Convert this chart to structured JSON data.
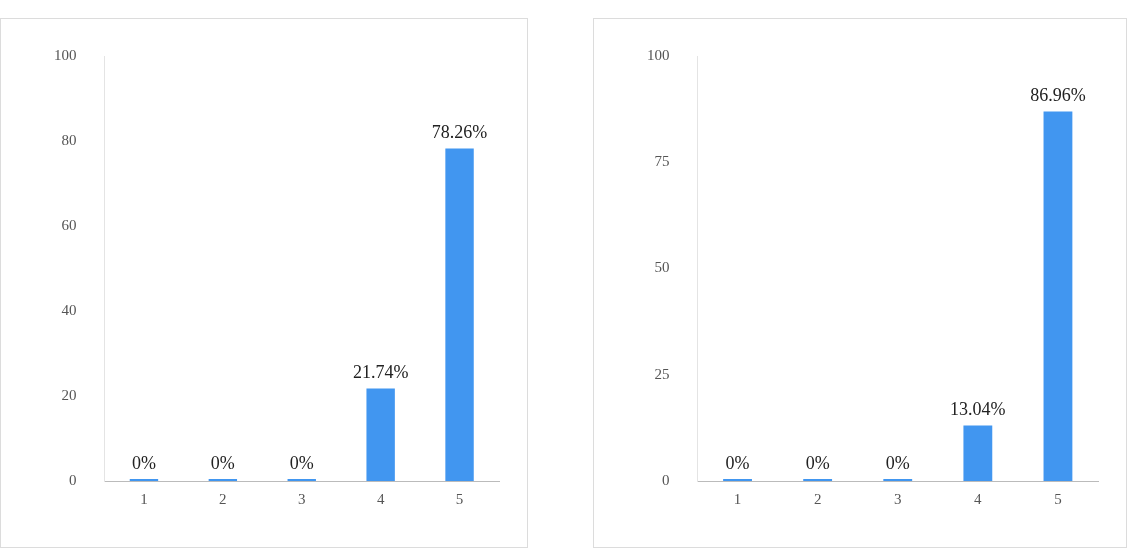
{
  "chart_data": [
    {
      "type": "bar",
      "categories": [
        "1",
        "2",
        "3",
        "4",
        "5"
      ],
      "values": [
        0,
        0,
        0,
        21.74,
        78.26
      ],
      "color": "#4196f0",
      "value_labels": [
        "0%",
        "0%",
        "0%",
        "21.74%",
        "78.26%"
      ],
      "ylim": [
        0,
        100
      ],
      "yticks": [
        0,
        20,
        40,
        60,
        80,
        100
      ],
      "grid": false,
      "legend": false
    },
    {
      "type": "bar",
      "categories": [
        "1",
        "2",
        "3",
        "4",
        "5"
      ],
      "values": [
        0,
        0,
        0,
        13.04,
        86.96
      ],
      "color": "#4196f0",
      "value_labels": [
        "0%",
        "0%",
        "0%",
        "13.04%",
        "86.96%"
      ],
      "ylim": [
        0,
        100
      ],
      "yticks": [
        0,
        25,
        50,
        75,
        100
      ],
      "grid": false,
      "legend": false
    }
  ]
}
